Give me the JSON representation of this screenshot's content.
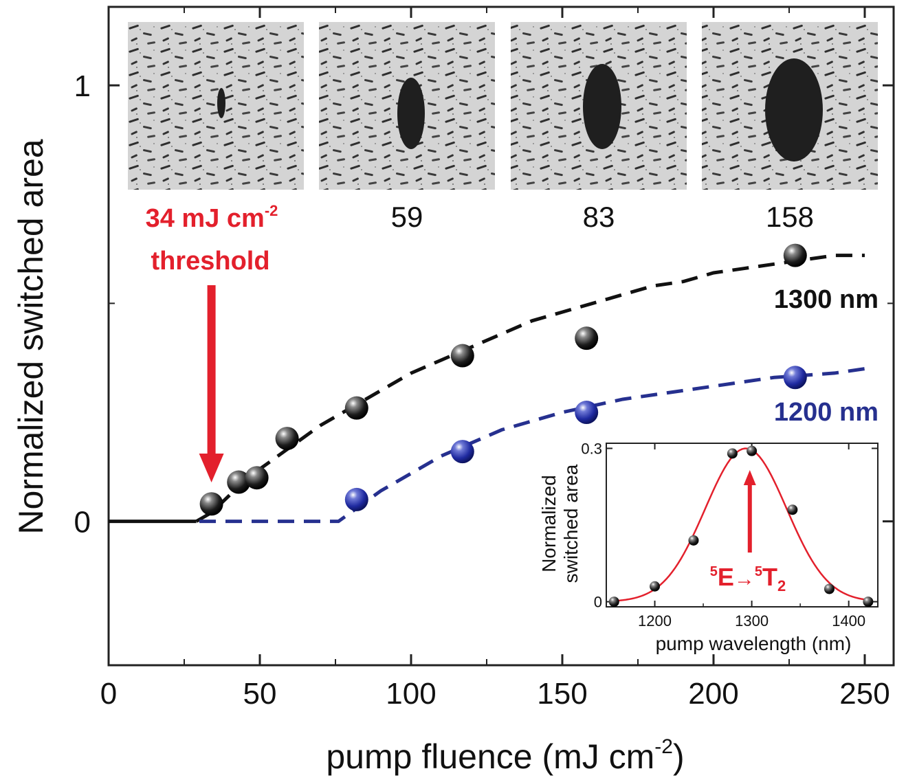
{
  "chart_data": [
    {
      "type": "scatter",
      "title": "",
      "xlabel": "pump fluence (mJ cm",
      "xlabel_sup": "-2",
      "xlabel_close": ")",
      "ylabel": "Normalized switched area",
      "xlim": [
        0,
        250
      ],
      "ylim": [
        -0.33,
        1.18
      ],
      "x_ticks": [
        "0",
        "50",
        "100",
        "150",
        "200",
        "250"
      ],
      "y_ticks": [
        "0",
        "1"
      ],
      "grid": false,
      "series": [
        {
          "name": "1300 nm",
          "color": "#111111",
          "points": [
            [
              34,
              0.04
            ],
            [
              43,
              0.09
            ],
            [
              49,
              0.1
            ],
            [
              59,
              0.19
            ],
            [
              82,
              0.26
            ],
            [
              117,
              0.38
            ],
            [
              158,
              0.42
            ],
            [
              227,
              0.61
            ]
          ],
          "fit": [
            [
              0,
              0.0
            ],
            [
              29,
              0.0
            ],
            [
              34,
              0.02
            ],
            [
              40,
              0.06
            ],
            [
              50,
              0.12
            ],
            [
              60,
              0.17
            ],
            [
              70,
              0.22
            ],
            [
              80,
              0.26
            ],
            [
              90,
              0.3
            ],
            [
              100,
              0.34
            ],
            [
              110,
              0.37
            ],
            [
              120,
              0.4
            ],
            [
              130,
              0.43
            ],
            [
              140,
              0.46
            ],
            [
              150,
              0.48
            ],
            [
              160,
              0.5
            ],
            [
              170,
              0.52
            ],
            [
              180,
              0.54
            ],
            [
              190,
              0.55
            ],
            [
              200,
              0.57
            ],
            [
              210,
              0.58
            ],
            [
              220,
              0.59
            ],
            [
              230,
              0.6
            ],
            [
              240,
              0.61
            ],
            [
              250,
              0.61
            ]
          ],
          "fit_solid_until": 29
        },
        {
          "name": "1200 nm",
          "color": "#26308f",
          "points": [
            [
              82,
              0.05
            ],
            [
              117,
              0.16
            ],
            [
              158,
              0.25
            ],
            [
              227,
              0.33
            ]
          ],
          "fit": [
            [
              30,
              0.0
            ],
            [
              76,
              0.0
            ],
            [
              80,
              0.02
            ],
            [
              90,
              0.07
            ],
            [
              100,
              0.11
            ],
            [
              110,
              0.15
            ],
            [
              120,
              0.18
            ],
            [
              130,
              0.21
            ],
            [
              140,
              0.23
            ],
            [
              150,
              0.25
            ],
            [
              160,
              0.265
            ],
            [
              170,
              0.28
            ],
            [
              180,
              0.29
            ],
            [
              190,
              0.3
            ],
            [
              200,
              0.31
            ],
            [
              210,
              0.32
            ],
            [
              220,
              0.33
            ],
            [
              230,
              0.335
            ],
            [
              240,
              0.34
            ],
            [
              250,
              0.35
            ]
          ]
        }
      ],
      "annotations": {
        "threshold_value": "34 mJ cm",
        "threshold_sup": "-2",
        "threshold_word": "threshold",
        "threshold_x": 34,
        "threshold_color": "#e3202c"
      },
      "image_panels": [
        {
          "label": "",
          "fluence": 34
        },
        {
          "label": "59",
          "fluence": 59
        },
        {
          "label": "83",
          "fluence": 83
        },
        {
          "label": "158",
          "fluence": 158
        }
      ]
    },
    {
      "type": "line",
      "title": "",
      "xlabel": "pump wavelength (nm)",
      "ylabel_line1": "Normalized",
      "ylabel_line2": "switched area",
      "xlim": [
        1150,
        1430
      ],
      "ylim": [
        -0.01,
        0.31
      ],
      "x_ticks": [
        "1200",
        "1300",
        "1400"
      ],
      "y_ticks": [
        "0",
        "0.3"
      ],
      "color": "#e3202c",
      "points": [
        [
          1158,
          0.0
        ],
        [
          1200,
          0.03
        ],
        [
          1240,
          0.12
        ],
        [
          1280,
          0.29
        ],
        [
          1300,
          0.295
        ],
        [
          1342,
          0.18
        ],
        [
          1380,
          0.025
        ],
        [
          1420,
          0.0
        ]
      ],
      "transition": {
        "from_sup": "5",
        "from": "E",
        "arrow": "→",
        "to_sup": "5",
        "to": "T",
        "to_sub": "2",
        "x": 1298
      }
    }
  ]
}
